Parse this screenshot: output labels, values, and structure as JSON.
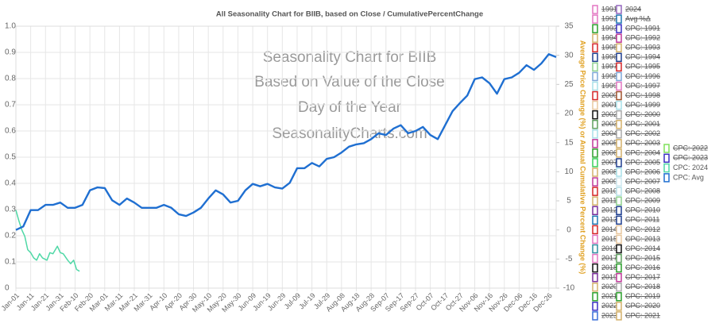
{
  "chart_data": {
    "type": "line",
    "title": "All Seasonality Chart for BIIB, based on Close / CumulativePercentChange",
    "annotations": [
      "Seasonality Chart for BIIB",
      "Based on Value of the Close",
      "Day of the Year",
      "SeasonalityCharts.com"
    ],
    "y2_label": "Average Price Change (%) or Annual Cumulative Percent Change (%)",
    "grid": true,
    "xlim": [
      1,
      366
    ],
    "xticks": [
      {
        "value": 1,
        "label": "Jan-01"
      },
      {
        "value": 11,
        "label": "Jan-11"
      },
      {
        "value": 21,
        "label": "Jan-21"
      },
      {
        "value": 31,
        "label": "Jan-31"
      },
      {
        "value": 41,
        "label": "Feb-10"
      },
      {
        "value": 51,
        "label": "Feb-20"
      },
      {
        "value": 61,
        "label": "Mar-01"
      },
      {
        "value": 71,
        "label": "Mar-11"
      },
      {
        "value": 81,
        "label": "Mar-21"
      },
      {
        "value": 91,
        "label": "Mar-31"
      },
      {
        "value": 101,
        "label": "Apr-10"
      },
      {
        "value": 111,
        "label": "Apr-20"
      },
      {
        "value": 121,
        "label": "Apr-30"
      },
      {
        "value": 131,
        "label": "May-10"
      },
      {
        "value": 141,
        "label": "May-20"
      },
      {
        "value": 151,
        "label": "May-30"
      },
      {
        "value": 161,
        "label": "Jun-09"
      },
      {
        "value": 171,
        "label": "Jun-19"
      },
      {
        "value": 181,
        "label": "Jun-29"
      },
      {
        "value": 191,
        "label": "Jul-09"
      },
      {
        "value": 201,
        "label": "Jul-19"
      },
      {
        "value": 211,
        "label": "Jul-29"
      },
      {
        "value": 221,
        "label": "Aug-08"
      },
      {
        "value": 231,
        "label": "Aug-18"
      },
      {
        "value": 241,
        "label": "Aug-28"
      },
      {
        "value": 251,
        "label": "Sep-07"
      },
      {
        "value": 261,
        "label": "Sep-17"
      },
      {
        "value": 271,
        "label": "Sep-27"
      },
      {
        "value": 281,
        "label": "Oct-07"
      },
      {
        "value": 291,
        "label": "Oct-17"
      },
      {
        "value": 301,
        "label": "Oct-27"
      },
      {
        "value": 311,
        "label": "Nov-06"
      },
      {
        "value": 321,
        "label": "Nov-16"
      },
      {
        "value": 331,
        "label": "Nov-26"
      },
      {
        "value": 341,
        "label": "Dec-06"
      },
      {
        "value": 351,
        "label": "Dec-16"
      },
      {
        "value": 361,
        "label": "Dec-26"
      }
    ],
    "ylim": [
      0,
      1
    ],
    "yticks": [
      0,
      0.1,
      0.2,
      0.3,
      0.4,
      0.5,
      0.6,
      0.7,
      0.8,
      0.9,
      {
        "value": 1,
        "label": "1.0"
      }
    ],
    "y2lim": [
      -10,
      35
    ],
    "y2ticks": [
      -10,
      -5,
      0,
      5,
      10,
      15,
      20,
      25,
      30,
      35
    ],
    "series": [
      {
        "name": "CPC: 2024",
        "color": "#4fd8a6",
        "axis": "y2",
        "x": [
          1,
          3,
          5,
          7,
          9,
          11,
          13,
          15,
          17,
          19,
          22,
          24,
          26,
          29,
          31,
          33,
          36,
          38,
          40,
          42,
          44
        ],
        "values": [
          3.4,
          1.6,
          0,
          -1.1,
          -3.4,
          -3.9,
          -4.8,
          -5.2,
          -4.1,
          -4.8,
          -5.2,
          -3.9,
          -4.1,
          -2.8,
          -3.9,
          -4.1,
          -5.2,
          -5.8,
          -5.2,
          -6.8,
          -7.1
        ]
      },
      {
        "name": "CPC: Avg",
        "color": "#1f6fd1",
        "axis": "y2",
        "x": [
          1,
          6,
          11,
          16,
          21,
          26,
          31,
          36,
          41,
          46,
          51,
          56,
          61,
          66,
          71,
          76,
          81,
          86,
          91,
          96,
          101,
          106,
          111,
          116,
          121,
          126,
          131,
          136,
          141,
          146,
          151,
          156,
          161,
          166,
          171,
          176,
          181,
          186,
          191,
          196,
          201,
          206,
          211,
          216,
          221,
          226,
          231,
          236,
          241,
          246,
          251,
          256,
          261,
          266,
          271,
          276,
          281,
          286,
          291,
          296,
          301,
          306,
          311,
          316,
          321,
          326,
          331,
          336,
          341,
          346,
          351,
          356,
          361,
          366
        ],
        "values": [
          0,
          0.6,
          3.4,
          3.4,
          4.3,
          4.3,
          4.7,
          3.8,
          3.8,
          4.3,
          6.8,
          7.3,
          7.2,
          5.1,
          4.3,
          5.4,
          4.7,
          3.8,
          3.8,
          3.8,
          4.3,
          3.8,
          2.7,
          2.4,
          3.0,
          3.8,
          5.4,
          6.8,
          6.1,
          4.7,
          5.0,
          6.8,
          7.9,
          7.5,
          7.9,
          7.3,
          7.1,
          8.1,
          10.6,
          10.6,
          11.5,
          10.9,
          12.2,
          12.5,
          13.3,
          14.3,
          14.7,
          14.9,
          15.6,
          16.6,
          16.3,
          17.4,
          18.0,
          16.6,
          17.0,
          17.7,
          16.3,
          15.6,
          18.0,
          20.4,
          21.8,
          23.1,
          25.9,
          26.2,
          25.2,
          23.4,
          25.9,
          26.2,
          27.0,
          28.3,
          27.5,
          28.6,
          30.2,
          29.7
        ]
      }
    ],
    "legend": [
      {
        "label": "1991",
        "color": "#e377c2"
      },
      {
        "label": "2024",
        "color": "#9467bd"
      },
      {
        "label": "1992",
        "color": "#e377c2"
      },
      {
        "label": "Avg %Δ",
        "color": "#1f77b4"
      },
      {
        "label": "1993",
        "color": "#2ca02c"
      },
      {
        "label": "CPC: 1991",
        "color": "#3a2fc4"
      },
      {
        "label": "1994",
        "color": "#d4b16a"
      },
      {
        "label": "CPC: 1992",
        "color": "#c0399a"
      },
      {
        "label": "1995",
        "color": "#d62728"
      },
      {
        "label": "CPC: 1993",
        "color": "#d4b16a"
      },
      {
        "label": "1996",
        "color": "#1f3f8f"
      },
      {
        "label": "CPC: 1994",
        "color": "#1f3f8f"
      },
      {
        "label": "1997",
        "color": "#8fd18f"
      },
      {
        "label": "CPC: 1995",
        "color": "#d62728"
      },
      {
        "label": "1998",
        "color": "#7fa8d8"
      },
      {
        "label": "CPC: 1996",
        "color": "#7fa8d8"
      },
      {
        "label": "1999",
        "color": "#a8e0e8"
      },
      {
        "label": "CPC: 1997",
        "color": "#e377c2"
      },
      {
        "label": "2000",
        "color": "#d62728"
      },
      {
        "label": "CPC: 1998",
        "color": "#a0522d"
      },
      {
        "label": "2001",
        "color": "#e8c8a0"
      },
      {
        "label": "CPC: 1999",
        "color": "#a8e0e8"
      },
      {
        "label": "2002",
        "color": "#111111"
      },
      {
        "label": "CPC: 2000",
        "color": "#aaaaaa"
      },
      {
        "label": "2003",
        "color": "#5fa05f"
      },
      {
        "label": "CPC: 2001",
        "color": "#d4b16a"
      },
      {
        "label": "2004",
        "color": "#a8e0e8"
      },
      {
        "label": "CPC: 2002",
        "color": "#aaaaaa"
      },
      {
        "label": "2005",
        "color": "#c0399a"
      },
      {
        "label": "CPC: 2003",
        "color": "#d4b16a"
      },
      {
        "label": "2006",
        "color": "#2ca02c"
      },
      {
        "label": "CPC: 2004",
        "color": "#d4b16a"
      },
      {
        "label": "2007",
        "color": "#3ad15a"
      },
      {
        "label": "CPC: 2005",
        "color": "#1f3f8f"
      },
      {
        "label": "2008",
        "color": "#d4b16a"
      },
      {
        "label": "CPC: 2006",
        "color": "#a8e0e8"
      },
      {
        "label": "2009",
        "color": "#c0399a"
      },
      {
        "label": "CPC: 2007",
        "color": "#cfe8f0"
      },
      {
        "label": "2010",
        "color": "#d62728"
      },
      {
        "label": "CPC: 2008",
        "color": "#b8e0e8"
      },
      {
        "label": "2011",
        "color": "#d4b16a"
      },
      {
        "label": "CPC: 2009",
        "color": "#8fd18f"
      },
      {
        "label": "2012",
        "color": "#7a2f9a"
      },
      {
        "label": "CPC: 2010",
        "color": "#1f3f8f"
      },
      {
        "label": "2013",
        "color": "#1f77b4"
      },
      {
        "label": "CPC: 2011",
        "color": "#1f3f8f"
      },
      {
        "label": "2014",
        "color": "#d62728"
      },
      {
        "label": "CPC: 2012",
        "color": "#e8c8a0"
      },
      {
        "label": "2015",
        "color": "#e377c2"
      },
      {
        "label": "CPC: 2013",
        "color": "#e8c8a0"
      },
      {
        "label": "2016",
        "color": "#2f8fa0"
      },
      {
        "label": "CPC: 2014",
        "color": "#111111"
      },
      {
        "label": "2017",
        "color": "#e377c2"
      },
      {
        "label": "CPC: 2015",
        "color": "#5fa05f"
      },
      {
        "label": "2018",
        "color": "#111111"
      },
      {
        "label": "CPC: 2016",
        "color": "#2ca02c"
      },
      {
        "label": "2019",
        "color": "#7a2f9a"
      },
      {
        "label": "CPC: 2017",
        "color": "#c0399a"
      },
      {
        "label": "2020",
        "color": "#d4b16a"
      },
      {
        "label": "CPC: 2018",
        "color": "#aaaaaa"
      },
      {
        "label": "2021",
        "color": "#2ca02c"
      },
      {
        "label": "CPC: 2019",
        "color": "#2ca02c"
      },
      {
        "label": "2022",
        "color": "#3a2fc4"
      },
      {
        "label": "CPC: 2020",
        "color": "#d4b16a"
      },
      {
        "label": "2023",
        "color": "#3a6fd8"
      },
      {
        "label": "CPC: 2021",
        "color": "#d4b16a"
      },
      {
        "label": "CPC: 2022",
        "color": "#7ee05a"
      },
      {
        "label": "CPC: 2023",
        "color": "#3a2fc4"
      }
    ]
  }
}
